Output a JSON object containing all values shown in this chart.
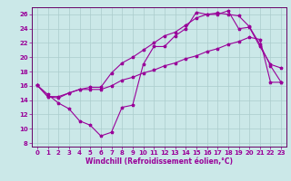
{
  "xlabel": "Windchill (Refroidissement éolien,°C)",
  "background_color": "#cbe8e8",
  "grid_color": "#aacccc",
  "line_color": "#990099",
  "spine_color": "#660066",
  "xlim": [
    -0.5,
    23.5
  ],
  "ylim": [
    7.5,
    27.0
  ],
  "xticks": [
    0,
    1,
    2,
    3,
    4,
    5,
    6,
    7,
    8,
    9,
    10,
    11,
    12,
    13,
    14,
    15,
    16,
    17,
    18,
    19,
    20,
    21,
    22,
    23
  ],
  "yticks": [
    8,
    10,
    12,
    14,
    16,
    18,
    20,
    22,
    24,
    26
  ],
  "series1_x": [
    0,
    1,
    2,
    3,
    4,
    5,
    6,
    7,
    8,
    9,
    10,
    11,
    12,
    13,
    14,
    15,
    16,
    17,
    18,
    19,
    20,
    21,
    22,
    23
  ],
  "series1_y": [
    16.1,
    14.8,
    13.6,
    12.8,
    11.1,
    10.5,
    9.0,
    9.5,
    13.0,
    13.3,
    19.0,
    21.5,
    21.5,
    23.0,
    24.0,
    26.3,
    26.0,
    26.0,
    26.5,
    24.0,
    24.2,
    21.5,
    19.0,
    18.5
  ],
  "series2_x": [
    0,
    1,
    2,
    3,
    4,
    5,
    6,
    7,
    8,
    9,
    10,
    11,
    12,
    13,
    14,
    15,
    16,
    17,
    18,
    19,
    20,
    21,
    22,
    23
  ],
  "series2_y": [
    16.1,
    14.5,
    14.5,
    15.0,
    15.5,
    15.5,
    15.5,
    16.0,
    16.8,
    17.2,
    17.8,
    18.2,
    18.8,
    19.2,
    19.8,
    20.2,
    20.8,
    21.2,
    21.8,
    22.2,
    22.8,
    22.5,
    16.5,
    16.5
  ],
  "series3_x": [
    0,
    1,
    2,
    3,
    4,
    5,
    6,
    7,
    8,
    9,
    10,
    11,
    12,
    13,
    14,
    15,
    16,
    17,
    18,
    19,
    20,
    21,
    22,
    23
  ],
  "series3_y": [
    16.1,
    14.5,
    14.3,
    15.0,
    15.5,
    15.8,
    15.8,
    17.8,
    19.2,
    20.0,
    21.0,
    22.0,
    23.0,
    23.5,
    24.5,
    25.5,
    26.0,
    26.2,
    26.0,
    25.8,
    24.3,
    21.8,
    18.8,
    16.5
  ],
  "xlabel_fontsize": 5.5,
  "tick_fontsize": 5.0,
  "linewidth": 0.8,
  "markersize": 2.0
}
